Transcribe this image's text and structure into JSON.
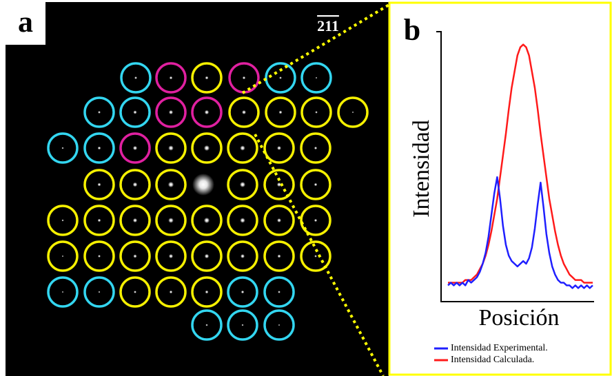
{
  "panel_a": {
    "label": "a",
    "zone_axis": "211"
  },
  "chart_data": {
    "type": "line",
    "panel_label": "b",
    "x_label": "Posición",
    "y_label": "Intensidad",
    "x": [
      0,
      2,
      4,
      6,
      8,
      10,
      12,
      14,
      16,
      18,
      20,
      22,
      24,
      26,
      28,
      30,
      32,
      34,
      36,
      38,
      40,
      42,
      44,
      46,
      48,
      50,
      52,
      54,
      56,
      58,
      60,
      62,
      64,
      66,
      68,
      70,
      72,
      74,
      76,
      78,
      80,
      82,
      84,
      86,
      88,
      90,
      92,
      94,
      96,
      98,
      100
    ],
    "xlim": [
      0,
      100
    ],
    "ylim": [
      0,
      100
    ],
    "series": [
      {
        "name": "Intensidad Experimental.",
        "color": "#1f1fff",
        "values": [
          6,
          7,
          6,
          7,
          6,
          7,
          6,
          8,
          7,
          8,
          9,
          11,
          14,
          18,
          24,
          32,
          40,
          46,
          38,
          28,
          21,
          17,
          15,
          14,
          13,
          14,
          15,
          14,
          16,
          20,
          27,
          36,
          44,
          35,
          25,
          18,
          13,
          10,
          8,
          7,
          7,
          6,
          6,
          5,
          6,
          5,
          6,
          5,
          6,
          5,
          6
        ]
      },
      {
        "name": "Intensidad Calculada.",
        "color": "#ff1a1a",
        "values": [
          7,
          7,
          7,
          7,
          7,
          7,
          8,
          8,
          8,
          9,
          10,
          12,
          14,
          17,
          21,
          26,
          32,
          38,
          46,
          54,
          62,
          71,
          79,
          85,
          91,
          94,
          95,
          94,
          91,
          85,
          79,
          71,
          62,
          54,
          46,
          38,
          32,
          26,
          21,
          17,
          14,
          12,
          10,
          9,
          8,
          8,
          8,
          7,
          7,
          7,
          7
        ]
      }
    ]
  }
}
